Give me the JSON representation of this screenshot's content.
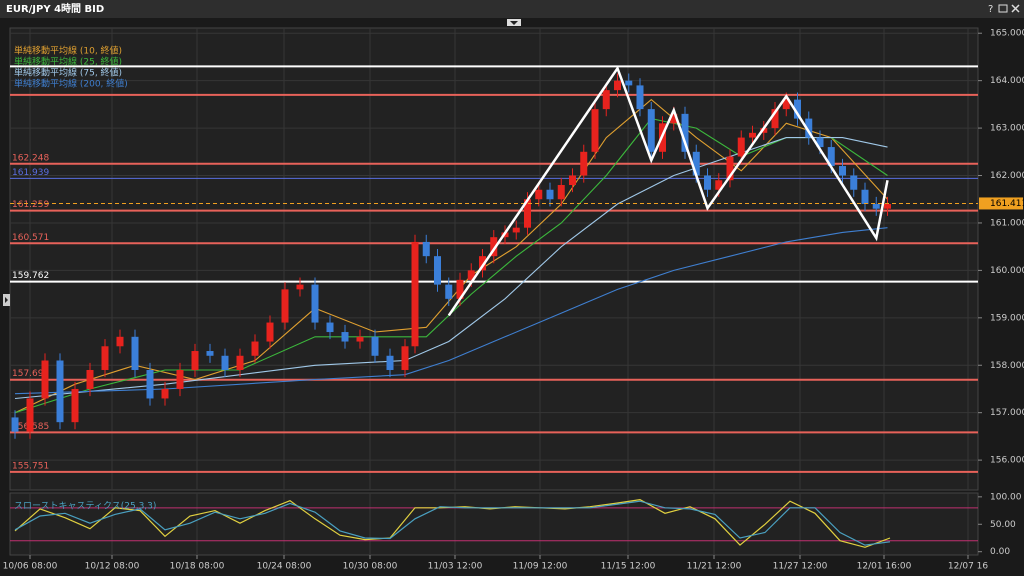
{
  "window": {
    "title": "EUR/JPY 4時間 BID",
    "help": "?"
  },
  "chart_data": [
    {
      "type": "candlestick",
      "xlim": [
        -2,
        385.2
      ],
      "xticks": [
        {
          "value": 6,
          "label": "10/06 08:00"
        },
        {
          "value": 38.8,
          "label": "10/12 08:00"
        },
        {
          "value": 72.8,
          "label": "10/18 08:00"
        },
        {
          "value": 107.6,
          "label": "10/24 08:00"
        },
        {
          "value": 142,
          "label": "10/30 08:00"
        },
        {
          "value": 176,
          "label": "11/03 12:00"
        },
        {
          "value": 210,
          "label": "11/09 12:00"
        },
        {
          "value": 245.2,
          "label": "11/15 12:00"
        },
        {
          "value": 279.6,
          "label": "11/21 12:00"
        },
        {
          "value": 314,
          "label": "11/27 12:00"
        },
        {
          "value": 347.6,
          "label": "12/01 16:00"
        },
        {
          "value": 381.2,
          "label": "12/07 16"
        }
      ],
      "ylim": [
        155.37,
        165.11
      ],
      "yticks": [
        {
          "value": 165,
          "label": "165.000"
        },
        {
          "value": 164,
          "label": "164.000"
        },
        {
          "value": 163,
          "label": "163.000"
        },
        {
          "value": 162,
          "label": "162.000"
        },
        {
          "value": 161,
          "label": "161.000"
        },
        {
          "value": 160,
          "label": "160.000"
        },
        {
          "value": 159,
          "label": "159.000"
        },
        {
          "value": 158,
          "label": "158.000"
        },
        {
          "value": 157,
          "label": "157.000"
        },
        {
          "value": 156,
          "label": "156.000"
        }
      ],
      "grid": true,
      "up_color": "#e8231e",
      "down_color": "#3b7fd9",
      "x": [
        0,
        6,
        12,
        18,
        24,
        30,
        36,
        42,
        48,
        54,
        60,
        66,
        72,
        78,
        84,
        90,
        96,
        102,
        108,
        114,
        120,
        126,
        132,
        138,
        144,
        150,
        156,
        160,
        164.5,
        169,
        173.5,
        178,
        182.5,
        187,
        191.5,
        196,
        200.5,
        205,
        209.5,
        214,
        218.5,
        223,
        227.5,
        232,
        236.5,
        241,
        245.5,
        250,
        254.5,
        259,
        263.5,
        268,
        272.5,
        277,
        281.5,
        286,
        290.5,
        295,
        299.5,
        304,
        308.5,
        313,
        317.5,
        322,
        326.5,
        331,
        335.5,
        340,
        344.5,
        349
      ],
      "open": [
        156.9,
        156.6,
        157.3,
        158.1,
        156.8,
        157.5,
        157.9,
        158.4,
        158.6,
        157.9,
        157.3,
        157.5,
        157.9,
        158.3,
        158.2,
        157.9,
        158.2,
        158.5,
        158.9,
        159.6,
        159.7,
        158.9,
        158.7,
        158.5,
        158.6,
        158.2,
        157.9,
        158.4,
        160.6,
        160.3,
        159.7,
        159.4,
        159.8,
        160.0,
        160.3,
        160.7,
        160.8,
        160.9,
        161.5,
        161.7,
        161.5,
        161.8,
        162.0,
        162.5,
        163.4,
        163.8,
        164.0,
        163.9,
        163.4,
        162.5,
        163.1,
        163.3,
        162.5,
        162.0,
        161.7,
        161.9,
        162.4,
        162.8,
        162.9,
        163.0,
        163.4,
        163.6,
        163.2,
        162.8,
        162.6,
        162.2,
        162.0,
        161.7,
        161.4,
        161.3
      ],
      "high": [
        157.05,
        157.45,
        158.25,
        158.25,
        157.65,
        158.05,
        158.55,
        158.75,
        158.75,
        158.05,
        157.65,
        158.05,
        158.45,
        158.45,
        158.35,
        158.35,
        158.65,
        159.05,
        159.75,
        159.85,
        159.85,
        159.05,
        158.85,
        158.75,
        158.75,
        158.35,
        158.55,
        160.75,
        160.75,
        160.45,
        159.85,
        159.95,
        160.15,
        160.45,
        160.85,
        160.95,
        161.05,
        161.65,
        161.85,
        161.85,
        161.95,
        162.15,
        162.65,
        163.55,
        163.95,
        164.15,
        164.15,
        164.05,
        163.55,
        163.25,
        163.45,
        163.45,
        162.65,
        162.15,
        162.05,
        162.55,
        162.95,
        163.05,
        163.15,
        163.55,
        163.75,
        163.75,
        163.35,
        162.95,
        162.75,
        162.35,
        162.15,
        161.85,
        161.55,
        161.55
      ],
      "low": [
        156.45,
        156.45,
        157.15,
        156.65,
        156.65,
        157.35,
        157.75,
        158.25,
        157.75,
        157.15,
        157.15,
        157.35,
        157.75,
        158.05,
        157.75,
        157.75,
        158.05,
        158.35,
        158.75,
        159.45,
        158.75,
        158.55,
        158.35,
        158.35,
        158.05,
        157.75,
        157.75,
        158.25,
        160.15,
        159.55,
        159.25,
        159.25,
        159.65,
        159.85,
        160.15,
        160.55,
        160.65,
        160.75,
        161.35,
        161.35,
        161.35,
        161.65,
        161.85,
        162.35,
        163.25,
        163.65,
        163.75,
        163.25,
        162.35,
        162.35,
        162.95,
        162.35,
        161.85,
        161.55,
        161.55,
        161.75,
        162.25,
        162.65,
        162.75,
        162.85,
        163.25,
        163.05,
        162.65,
        162.45,
        162.05,
        161.85,
        161.55,
        161.25,
        161.15,
        161.15
      ],
      "close": [
        156.6,
        157.3,
        158.1,
        156.8,
        157.5,
        157.9,
        158.4,
        158.6,
        157.9,
        157.3,
        157.5,
        157.9,
        158.3,
        158.2,
        157.9,
        158.2,
        158.5,
        158.9,
        159.6,
        159.7,
        158.9,
        158.7,
        158.5,
        158.6,
        158.2,
        157.9,
        158.4,
        160.6,
        160.3,
        159.7,
        159.4,
        159.8,
        160.0,
        160.3,
        160.7,
        160.8,
        160.9,
        161.5,
        161.7,
        161.5,
        161.8,
        162.0,
        162.5,
        163.4,
        163.8,
        164.0,
        163.9,
        163.4,
        162.5,
        163.1,
        163.3,
        162.5,
        162.0,
        161.7,
        161.9,
        162.4,
        162.8,
        162.9,
        163.0,
        163.4,
        163.6,
        163.2,
        162.8,
        162.6,
        162.2,
        162.0,
        161.7,
        161.4,
        161.3,
        161.4
      ],
      "series": [
        {
          "name": "単純移動平均線 (10, 終値)",
          "color": "#e0a030",
          "x": [
            0,
            24,
            48,
            72,
            96,
            120,
            144,
            164.5,
            182.5,
            200.5,
            218.5,
            236.5,
            254.5,
            272.5,
            290.5,
            308.5,
            326.5,
            349
          ],
          "values": [
            157.0,
            157.6,
            158.0,
            157.7,
            158.1,
            159.2,
            158.7,
            158.8,
            159.9,
            160.5,
            161.4,
            162.8,
            163.6,
            162.8,
            162.1,
            163.1,
            162.8,
            161.5
          ]
        },
        {
          "name": "単純移動平均線 (25, 終値)",
          "color": "#3cb83c",
          "x": [
            0,
            30,
            60,
            90,
            120,
            150,
            164.5,
            182.5,
            200.5,
            218.5,
            236.5,
            254.5,
            272.5,
            290.5,
            308.5,
            326.5,
            349
          ],
          "values": [
            157.0,
            157.5,
            157.9,
            157.9,
            158.6,
            158.6,
            158.6,
            159.5,
            160.3,
            161.0,
            162.0,
            163.2,
            163.0,
            162.4,
            162.8,
            162.8,
            162.0
          ]
        },
        {
          "name": "単純移動平均線 (75, 終値)",
          "color": "#a0c8e8",
          "x": [
            0,
            60,
            120,
            156,
            173.5,
            196,
            218.5,
            241,
            263.5,
            286,
            308.5,
            331,
            349
          ],
          "values": [
            157.3,
            157.6,
            158.0,
            158.1,
            158.5,
            159.4,
            160.5,
            161.4,
            162.0,
            162.4,
            162.8,
            162.8,
            162.6
          ]
        },
        {
          "name": "単純移動平均線 (200, 終値)",
          "color": "#3f7fd0",
          "x": [
            0,
            60,
            120,
            156,
            173.5,
            196,
            218.5,
            241,
            263.5,
            286,
            308.5,
            331,
            349
          ],
          "values": [
            157.4,
            157.5,
            157.7,
            157.8,
            158.1,
            158.6,
            159.1,
            159.6,
            160.0,
            160.3,
            160.6,
            160.8,
            160.9
          ]
        }
      ],
      "levels": [
        {
          "value": 164.3,
          "color": "#ffffff"
        },
        {
          "value": 163.7,
          "color": "#e8625a"
        },
        {
          "value": 162.248,
          "label": "162.248",
          "color": "#e8625a"
        },
        {
          "value": 161.939,
          "label": "161.939",
          "color": "#5a6ee0"
        },
        {
          "value": 161.259,
          "label": "161.259",
          "color": "#e8625a"
        },
        {
          "value": 160.571,
          "label": "160.571",
          "color": "#e8625a"
        },
        {
          "value": 159.762,
          "label": "159.762",
          "color": "#ffffff"
        },
        {
          "value": 157.695,
          "label": "157.695",
          "color": "#e8625a"
        },
        {
          "value": 156.585,
          "label": "156.585",
          "color": "#e8625a"
        },
        {
          "value": 155.751,
          "label": "155.751",
          "color": "#e8625a"
        }
      ],
      "current_price": 161.411,
      "current_color": "#f0a020",
      "pattern": {
        "color": "#ffffff",
        "x": [
          173.5,
          241,
          254.5,
          263.5,
          277,
          308.5,
          344.5,
          349
        ],
        "values": [
          159.05,
          164.26,
          162.32,
          163.38,
          161.31,
          163.67,
          160.68,
          161.9
        ]
      }
    },
    {
      "type": "line",
      "title": "スローストキャスティクス(25,3,3)",
      "xlim": [
        -2,
        385.2
      ],
      "ylim": [
        -6,
        107
      ],
      "yticks": [
        {
          "value": 100,
          "label": "100.00"
        },
        {
          "value": 50,
          "label": "50.00"
        },
        {
          "value": 0,
          "label": "0.00"
        }
      ],
      "levels": [
        80,
        20
      ],
      "level_color": "#c03070",
      "x": [
        0,
        10,
        20,
        30,
        40,
        50,
        60,
        70,
        80,
        90,
        100,
        110,
        120,
        130,
        140,
        150,
        160,
        170,
        180,
        190,
        200,
        210,
        220,
        230,
        240,
        250,
        260,
        270,
        280,
        290,
        300,
        310,
        320,
        330,
        340,
        350
      ],
      "series": [
        {
          "color": "#e0d040",
          "values": [
            38,
            78,
            62,
            42,
            80,
            75,
            28,
            65,
            75,
            52,
            75,
            93,
            60,
            30,
            22,
            25,
            80,
            80,
            82,
            78,
            82,
            80,
            78,
            82,
            88,
            95,
            70,
            82,
            60,
            12,
            50,
            92,
            70,
            20,
            8,
            25
          ]
        },
        {
          "color": "#4aa0c0",
          "values": [
            40,
            65,
            70,
            52,
            68,
            78,
            40,
            52,
            72,
            60,
            70,
            88,
            72,
            38,
            25,
            24,
            60,
            82,
            80,
            80,
            80,
            80,
            80,
            80,
            86,
            92,
            80,
            78,
            68,
            25,
            35,
            80,
            80,
            35,
            12,
            18
          ]
        }
      ]
    }
  ]
}
